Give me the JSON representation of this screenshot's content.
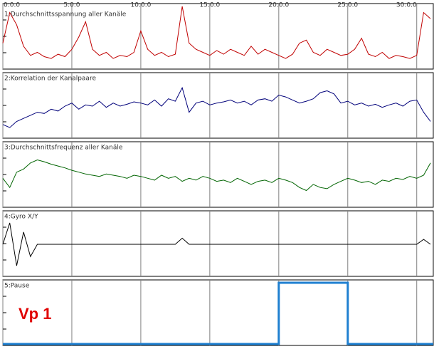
{
  "chart_data": [
    {
      "type": "line",
      "title": "1:Durchschnittsspannung aller Kanäle",
      "color": "#c00000",
      "xlim": [
        0,
        31.2
      ],
      "ylim": [
        0,
        100
      ],
      "xticks": [
        {
          "value": 0,
          "label": "0:0.0"
        },
        {
          "value": 5,
          "label": "5:0.0"
        },
        {
          "value": 10,
          "label": "10:0.0"
        },
        {
          "value": 15,
          "label": "15:0.0"
        },
        {
          "value": 20,
          "label": "20:0.0"
        },
        {
          "value": 25,
          "label": "25:0.0"
        },
        {
          "value": 30,
          "label": "30:0.0"
        }
      ],
      "x": [
        0,
        0.5,
        1,
        1.5,
        2,
        2.5,
        3,
        3.5,
        4,
        4.5,
        5,
        5.5,
        6,
        6.5,
        7,
        7.5,
        8,
        8.5,
        9,
        9.5,
        10,
        10.5,
        11,
        11.5,
        12,
        12.5,
        13,
        13.5,
        14,
        14.5,
        15,
        15.5,
        16,
        16.5,
        17,
        17.5,
        18,
        18.5,
        19,
        19.5,
        20,
        20.5,
        21,
        21.5,
        22,
        22.5,
        23,
        23.5,
        24,
        24.5,
        25,
        25.5,
        26,
        26.5,
        27,
        27.5,
        28,
        28.5,
        29,
        29.5,
        30,
        30.5,
        31
      ],
      "values": [
        40,
        90,
        70,
        35,
        20,
        25,
        18,
        15,
        22,
        18,
        30,
        50,
        75,
        30,
        20,
        25,
        15,
        20,
        18,
        25,
        60,
        30,
        20,
        25,
        18,
        22,
        100,
        40,
        30,
        25,
        20,
        28,
        22,
        30,
        25,
        20,
        35,
        22,
        30,
        25,
        20,
        15,
        22,
        40,
        45,
        25,
        20,
        30,
        25,
        20,
        22,
        30,
        48,
        22,
        18,
        25,
        15,
        20,
        18,
        15,
        20,
        90,
        80
      ]
    },
    {
      "type": "line",
      "title": "2:Korrelation der Kanalpaare",
      "color": "#00007a",
      "xlim": [
        0,
        31.2
      ],
      "ylim": [
        0,
        100
      ],
      "x": [
        0,
        0.5,
        1,
        1.5,
        2,
        2.5,
        3,
        3.5,
        4,
        4.5,
        5,
        5.5,
        6,
        6.5,
        7,
        7.5,
        8,
        8.5,
        9,
        9.5,
        10,
        10.5,
        11,
        11.5,
        12,
        12.5,
        13,
        13.5,
        14,
        14.5,
        15,
        15.5,
        16,
        16.5,
        17,
        17.5,
        18,
        18.5,
        19,
        19.5,
        20,
        20.5,
        21,
        21.5,
        22,
        22.5,
        23,
        23.5,
        24,
        24.5,
        25,
        25.5,
        26,
        26.5,
        27,
        27.5,
        28,
        28.5,
        29,
        29.5,
        30,
        30.5,
        31
      ],
      "values": [
        20,
        15,
        25,
        30,
        35,
        40,
        38,
        45,
        42,
        50,
        55,
        45,
        52,
        50,
        58,
        48,
        55,
        50,
        53,
        57,
        55,
        52,
        60,
        50,
        62,
        58,
        80,
        40,
        55,
        58,
        52,
        55,
        57,
        60,
        55,
        58,
        52,
        60,
        62,
        58,
        68,
        65,
        60,
        55,
        58,
        62,
        72,
        75,
        70,
        55,
        58,
        52,
        55,
        50,
        53,
        48,
        52,
        55,
        50,
        58,
        60,
        40,
        25
      ]
    },
    {
      "type": "line",
      "title": "3:Durchschnittsfrequenz aller Kanäle",
      "color": "#006400",
      "xlim": [
        0,
        31.2
      ],
      "ylim": [
        0,
        100
      ],
      "x": [
        0,
        0.5,
        1,
        1.5,
        2,
        2.5,
        3,
        3.5,
        4,
        4.5,
        5,
        5.5,
        6,
        6.5,
        7,
        7.5,
        8,
        8.5,
        9,
        9.5,
        10,
        10.5,
        11,
        11.5,
        12,
        12.5,
        13,
        13.5,
        14,
        14.5,
        15,
        15.5,
        16,
        16.5,
        17,
        17.5,
        18,
        18.5,
        19,
        19.5,
        20,
        20.5,
        21,
        21.5,
        22,
        22.5,
        23,
        23.5,
        24,
        24.5,
        25,
        25.5,
        26,
        26.5,
        27,
        27.5,
        28,
        28.5,
        29,
        29.5,
        30,
        30.5,
        31
      ],
      "values": [
        45,
        30,
        55,
        60,
        70,
        75,
        72,
        68,
        65,
        62,
        58,
        55,
        52,
        50,
        48,
        52,
        50,
        48,
        45,
        50,
        48,
        45,
        42,
        50,
        45,
        48,
        40,
        45,
        42,
        48,
        45,
        40,
        42,
        38,
        45,
        40,
        35,
        40,
        42,
        38,
        45,
        42,
        38,
        30,
        25,
        35,
        30,
        28,
        35,
        40,
        45,
        42,
        38,
        40,
        35,
        42,
        40,
        45,
        43,
        48,
        45,
        50,
        70
      ]
    },
    {
      "type": "line",
      "title": "4:Gyro X/Y",
      "color": "#000000",
      "xlim": [
        0,
        31.2
      ],
      "ylim": [
        0,
        100
      ],
      "x": [
        0,
        0.5,
        1,
        1.5,
        2,
        2.5,
        3,
        3.5,
        4,
        4.5,
        5,
        5.5,
        6,
        6.5,
        7,
        7.5,
        8,
        8.5,
        9,
        9.5,
        10,
        10.5,
        11,
        11.5,
        12,
        12.5,
        13,
        13.5,
        14,
        14.5,
        15,
        15.5,
        16,
        16.5,
        17,
        17.5,
        18,
        18.5,
        19,
        19.5,
        20,
        20.5,
        21,
        21.5,
        22,
        22.5,
        23,
        23.5,
        24,
        24.5,
        25,
        25.5,
        26,
        26.5,
        27,
        27.5,
        28,
        28.5,
        29,
        29.5,
        30,
        30.5,
        31
      ],
      "values": [
        50,
        85,
        15,
        70,
        30,
        50,
        50,
        50,
        50,
        50,
        50,
        50,
        50,
        50,
        50,
        50,
        50,
        50,
        50,
        50,
        50,
        50,
        50,
        50,
        50,
        50,
        60,
        50,
        50,
        50,
        50,
        50,
        50,
        50,
        50,
        50,
        50,
        50,
        50,
        50,
        50,
        50,
        50,
        50,
        50,
        50,
        50,
        50,
        50,
        50,
        50,
        50,
        50,
        50,
        50,
        50,
        50,
        50,
        50,
        50,
        50,
        58,
        50
      ]
    },
    {
      "type": "line",
      "title": "5:Pause",
      "color": "#1e7fd0",
      "annotation": "Vp 1",
      "xlim": [
        0,
        31.2
      ],
      "ylim": [
        0,
        100
      ],
      "x": [
        0,
        20,
        20,
        25,
        25,
        31.2
      ],
      "values": [
        0,
        0,
        100,
        100,
        0,
        0
      ]
    }
  ]
}
